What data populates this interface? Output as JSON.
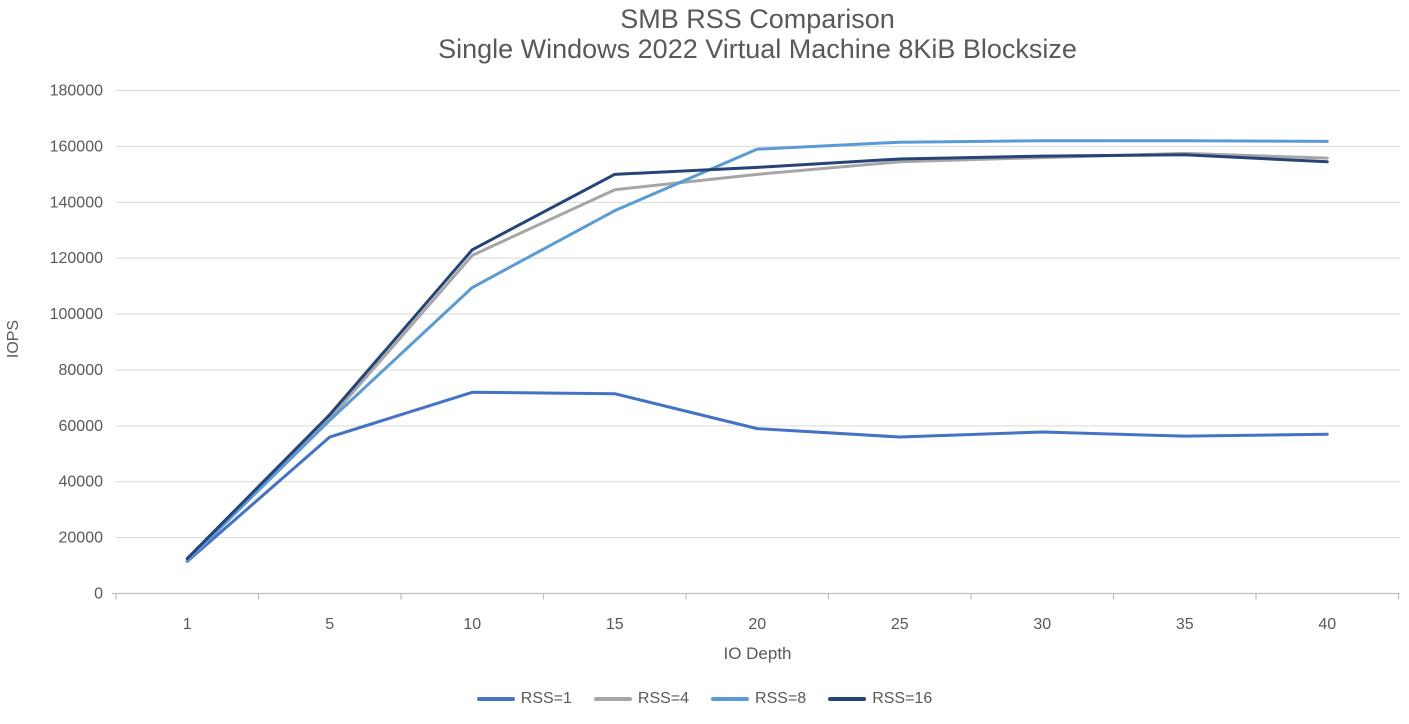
{
  "chart_data": {
    "type": "line",
    "title": "SMB RSS Comparison",
    "subtitle": "Single Windows 2022 Virtual Machine 8KiB Blocksize",
    "xlabel": "IO Depth",
    "ylabel": "IOPS",
    "categories": [
      "1",
      "5",
      "10",
      "15",
      "20",
      "25",
      "30",
      "35",
      "40"
    ],
    "ylim": [
      0,
      180000
    ],
    "ytick_step": 20000,
    "grid": true,
    "legend_position": "bottom",
    "axis_text_color": "#595959",
    "grid_color": "#D9D9D9",
    "axis_line_color": "#BFBFBF",
    "series": [
      {
        "name": "RSS=1",
        "color": "#4472C4",
        "values": [
          11500,
          56000,
          72000,
          71500,
          59000,
          56000,
          57800,
          56300,
          57000
        ]
      },
      {
        "name": "RSS=4",
        "color": "#A6A6A6",
        "values": [
          12000,
          62500,
          121000,
          144500,
          150000,
          154500,
          156000,
          157500,
          155800
        ]
      },
      {
        "name": "RSS=8",
        "color": "#5B9BD5",
        "values": [
          11800,
          62000,
          109500,
          137000,
          159000,
          161500,
          162000,
          162000,
          161800
        ]
      },
      {
        "name": "RSS=16",
        "color": "#264478",
        "values": [
          12500,
          64000,
          123000,
          150000,
          152500,
          155500,
          156500,
          157000,
          154500
        ]
      }
    ]
  }
}
